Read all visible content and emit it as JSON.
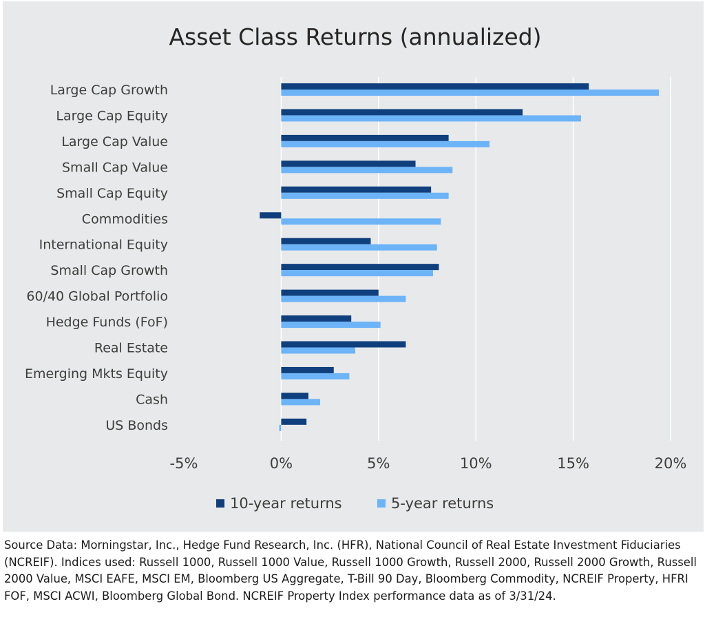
{
  "chart_data": {
    "type": "bar",
    "orientation": "horizontal",
    "title": "Asset Class Returns (annualized)",
    "categories": [
      "Large Cap Growth",
      "Large Cap Equity",
      "Large Cap Value",
      "Small Cap Value",
      "Small Cap Equity",
      "Commodities",
      "International Equity",
      "Small Cap Growth",
      "60/40 Global Portfolio",
      "Hedge Funds (FoF)",
      "Real Estate",
      "Emerging Mkts Equity",
      "Cash",
      "US Bonds"
    ],
    "series": [
      {
        "name": "10-year returns",
        "color": "#0f3f7d",
        "values": [
          15.8,
          12.4,
          8.6,
          6.9,
          7.7,
          -1.1,
          4.6,
          8.1,
          5.0,
          3.6,
          6.4,
          2.7,
          1.4,
          1.3
        ]
      },
      {
        "name": "5-year returns",
        "color": "#6cb3f7",
        "values": [
          19.4,
          15.4,
          10.7,
          8.8,
          8.6,
          8.2,
          8.0,
          7.8,
          6.4,
          5.1,
          3.8,
          3.5,
          2.0,
          -0.1
        ]
      }
    ],
    "xlim": [
      -5,
      20
    ],
    "xticks": [
      -5,
      0,
      5,
      10,
      15,
      20
    ],
    "xtick_labels": [
      "-5%",
      "0%",
      "5%",
      "10%",
      "15%",
      "20%"
    ],
    "xlabel": "",
    "ylabel": "",
    "grid": "vertical",
    "legend": "bottom-center",
    "background": "#e7e9ea",
    "gridline_color": "#ffffff"
  },
  "source_note": "Source Data: Morningstar, Inc., Hedge Fund Research, Inc. (HFR), National Council of Real Estate Investment Fiduciaries (NCREIF). Indices used: Russell 1000, Russell 1000 Value, Russell 1000 Growth, Russell 2000, Russell 2000 Growth, Russell 2000 Value, MSCI EAFE, MSCI EM, Bloomberg US Aggregate, T-Bill 90 Day, Bloomberg Commodity, NCREIF Property, HFRI FOF, MSCI ACWI, Bloomberg Global Bond. NCREIF Property Index performance data as of 3/31/24."
}
